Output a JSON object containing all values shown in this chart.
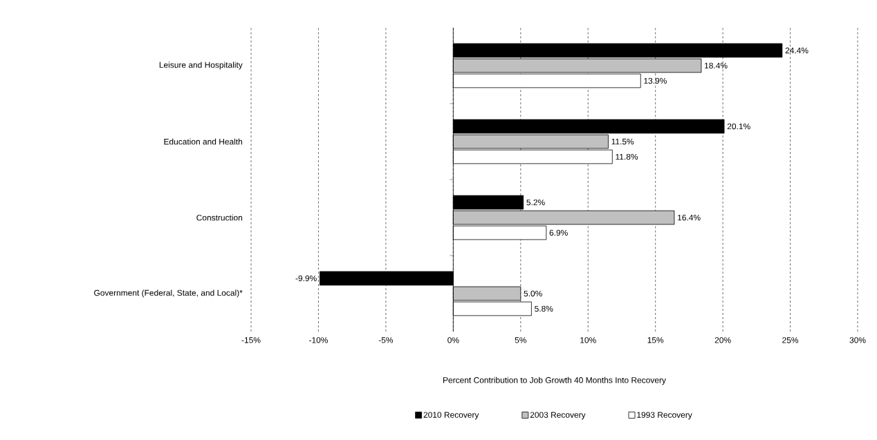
{
  "chart_data": {
    "type": "bar",
    "orientation": "horizontal",
    "categories": [
      "Leisure and Hospitality",
      "Education and Health",
      "Construction",
      "Government (Federal, State, and Local)*"
    ],
    "series": [
      {
        "name": "2010 Recovery",
        "color": "#000000",
        "values": [
          24.4,
          20.1,
          5.2,
          -9.9
        ],
        "value_labels": [
          "24.4%",
          "20.1%",
          "5.2%",
          "-9.9%"
        ]
      },
      {
        "name": "2003 Recovery",
        "color": "#c0c0c0",
        "values": [
          18.4,
          11.5,
          16.4,
          5.0
        ],
        "value_labels": [
          "18.4%",
          "11.5%",
          "16.4%",
          "5.0%"
        ]
      },
      {
        "name": "1993 Recovery",
        "color": "#ffffff",
        "values": [
          13.9,
          11.8,
          6.9,
          5.8
        ],
        "value_labels": [
          "13.9%",
          "11.8%",
          "6.9%",
          "5.8%"
        ]
      }
    ],
    "xlabel": "Percent Contribution to Job Growth 40 Months Into Recovery",
    "xlim": [
      -15,
      30
    ],
    "xticks": [
      {
        "value": -15,
        "label": "-15%"
      },
      {
        "value": -10,
        "label": "-10%"
      },
      {
        "value": -5,
        "label": "-5%"
      },
      {
        "value": 0,
        "label": "0%"
      },
      {
        "value": 5,
        "label": "5%"
      },
      {
        "value": 10,
        "label": "10%"
      },
      {
        "value": 15,
        "label": "15%"
      },
      {
        "value": 20,
        "label": "20%"
      },
      {
        "value": 25,
        "label": "25%"
      },
      {
        "value": 30,
        "label": "30%"
      }
    ],
    "grid": "x",
    "legend": "bottom"
  }
}
